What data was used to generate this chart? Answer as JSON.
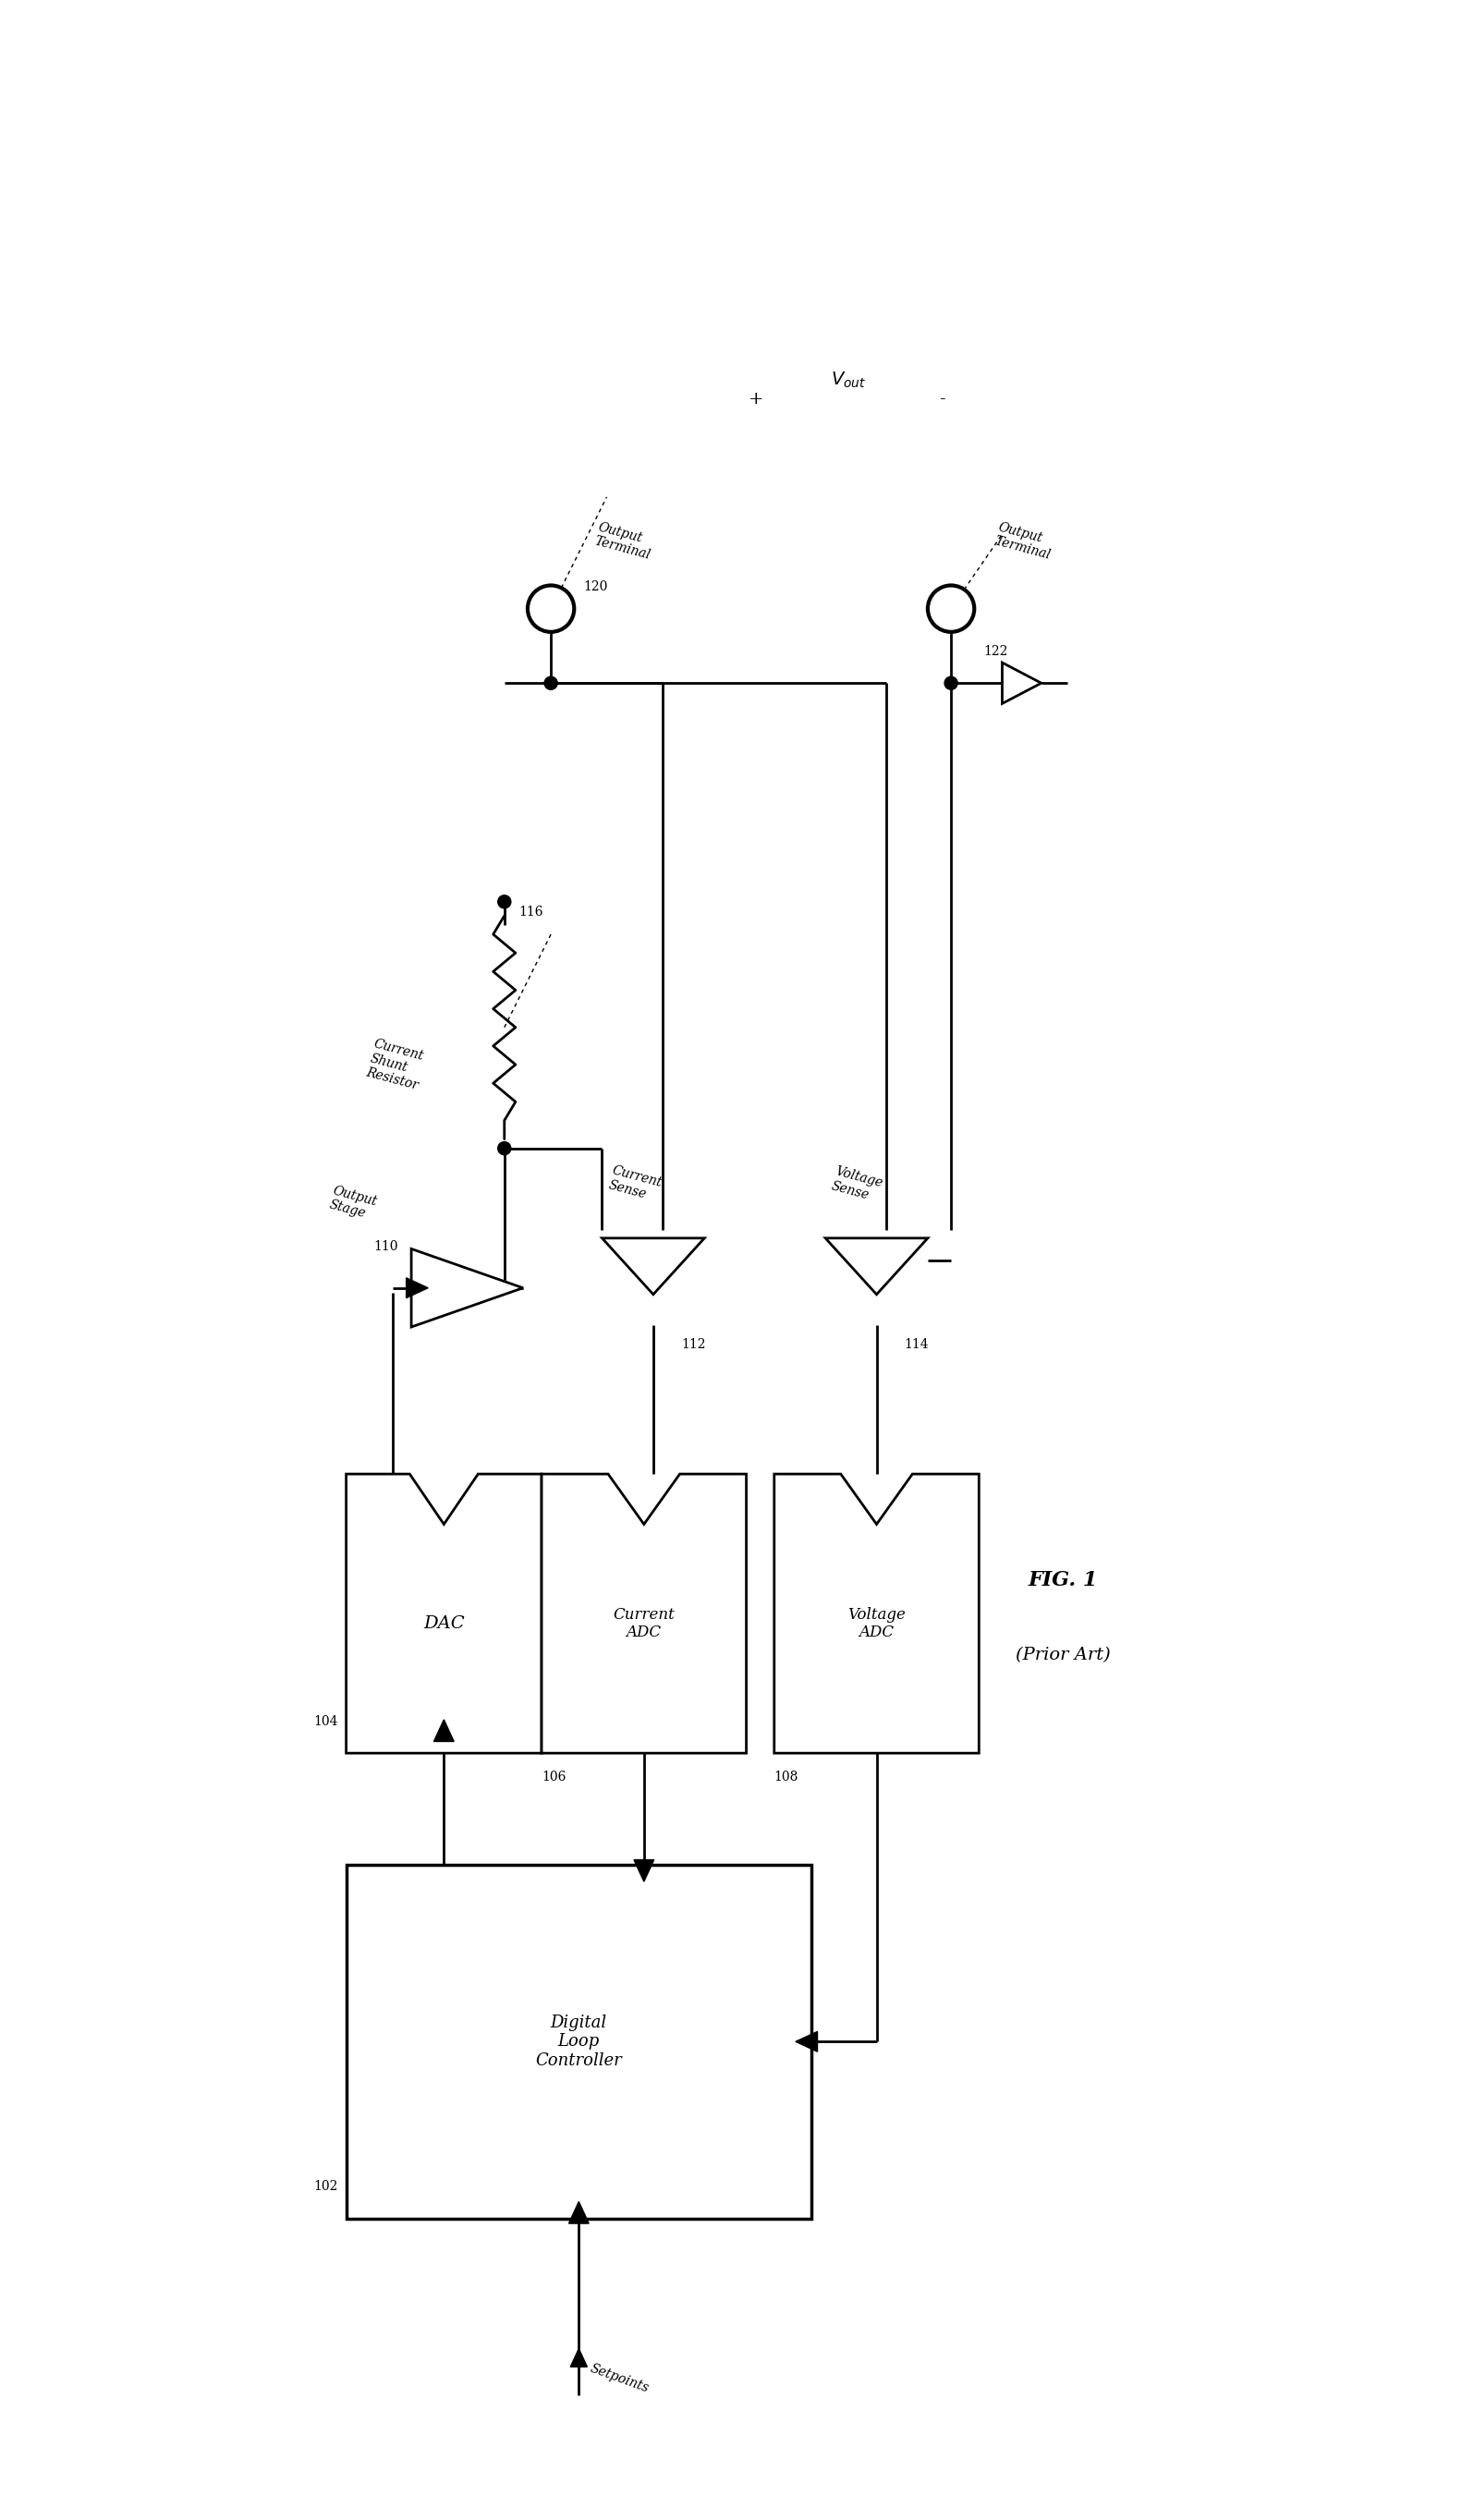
{
  "title": "FIG. 1\n(Prior Art)",
  "background_color": "#ffffff",
  "line_color": "#000000",
  "line_width": 2.0,
  "fig_width": 15.95,
  "fig_height": 27.27,
  "components": {
    "digital_loop_controller": {
      "label": "Digital\nLoop\nController",
      "ref": "102"
    },
    "dac": {
      "label": "DAC",
      "ref": "104"
    },
    "current_adc": {
      "label": "Current\nADC",
      "ref": "106"
    },
    "voltage_adc": {
      "label": "Voltage\nADC",
      "ref": "108"
    },
    "output_stage": {
      "label": "Output\nStage",
      "ref": "110"
    },
    "current_sense": {
      "label": "Current\nSense",
      "ref": "112"
    },
    "voltage_sense": {
      "label": "Voltage\nSense",
      "ref": "114"
    },
    "shunt_resistor": {
      "label": "Current\nShunt\nResistor",
      "ref": "116"
    },
    "output_terminal_pos": {
      "label": "Output\nTerminal",
      "ref": "120"
    },
    "output_terminal_neg": {
      "label": "Output\nTerminal",
      "ref": "122"
    }
  },
  "labels": {
    "vout_plus": "+",
    "vout_label": "V",
    "vout_sub": "out",
    "vout_minus": "-",
    "setpoints": "Setpoints"
  }
}
